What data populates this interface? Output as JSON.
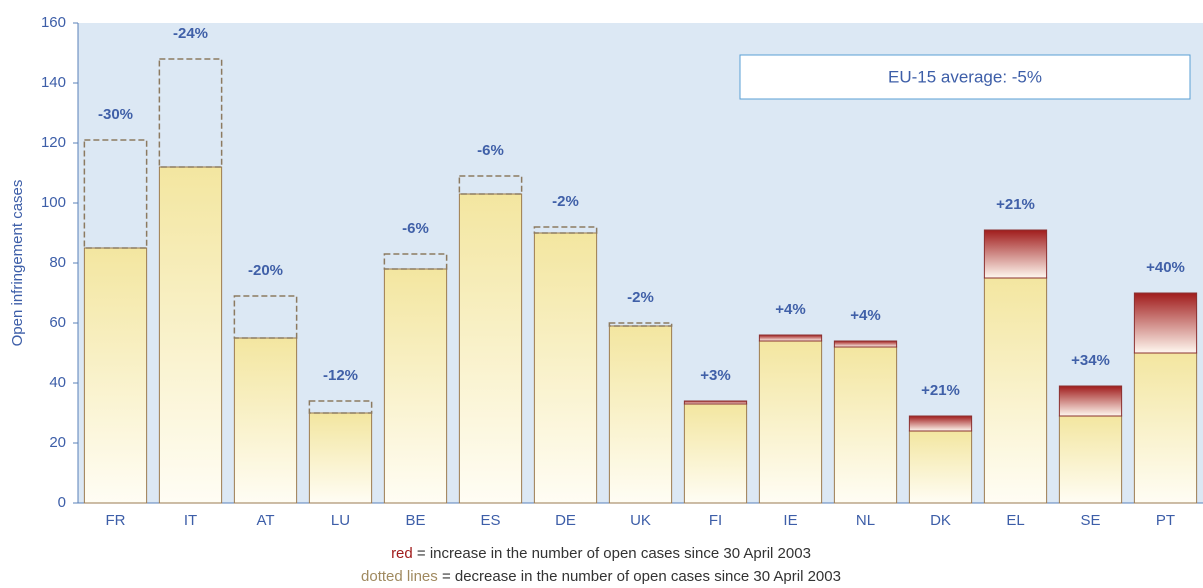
{
  "chart_data": {
    "type": "bar",
    "y_label": "Open infringement cases",
    "annotation": "EU-15 average: -5%",
    "categories": [
      "FR",
      "IT",
      "AT",
      "LU",
      "BE",
      "ES",
      "DE",
      "UK",
      "FI",
      "IE",
      "NL",
      "DK",
      "EL",
      "SE",
      "PT"
    ],
    "series": [
      {
        "color": "#f3e6a0",
        "values": [
          85,
          112,
          55,
          30,
          78,
          103,
          90,
          59,
          33,
          54,
          52,
          24,
          75,
          29,
          50
        ]
      },
      {
        "name": "red",
        "color": "#a01c1c",
        "values": [
          null,
          null,
          null,
          null,
          null,
          null,
          null,
          null,
          1,
          2,
          2,
          5,
          16,
          10,
          20
        ]
      },
      {
        "name": "dotted lines",
        "color": "#8c7a60",
        "values": [
          36,
          36,
          14,
          4,
          5,
          6,
          2,
          1,
          null,
          null,
          null,
          null,
          null,
          null,
          null
        ]
      }
    ],
    "changes": {
      "values": [
        -30,
        -24,
        -20,
        -12,
        -6,
        -6,
        -2,
        -2,
        3,
        4,
        4,
        21,
        21,
        34,
        40
      ],
      "value_labels": [
        "-30%",
        "-24%",
        "-20%",
        "-12%",
        "-6%",
        "-6%",
        "-2%",
        "-2%",
        "+3%",
        "+4%",
        "+4%",
        "+21%",
        "+21%",
        "+34%",
        "+40%"
      ]
    },
    "legend_texts": [
      "= increase in the number of open cases since 30 April 2003",
      "= decrease in the number of open cases since 30 April 2003"
    ],
    "ylim": [
      0,
      160
    ],
    "yticks": [
      0,
      20,
      40,
      60,
      80,
      100,
      120,
      140,
      160
    ]
  }
}
